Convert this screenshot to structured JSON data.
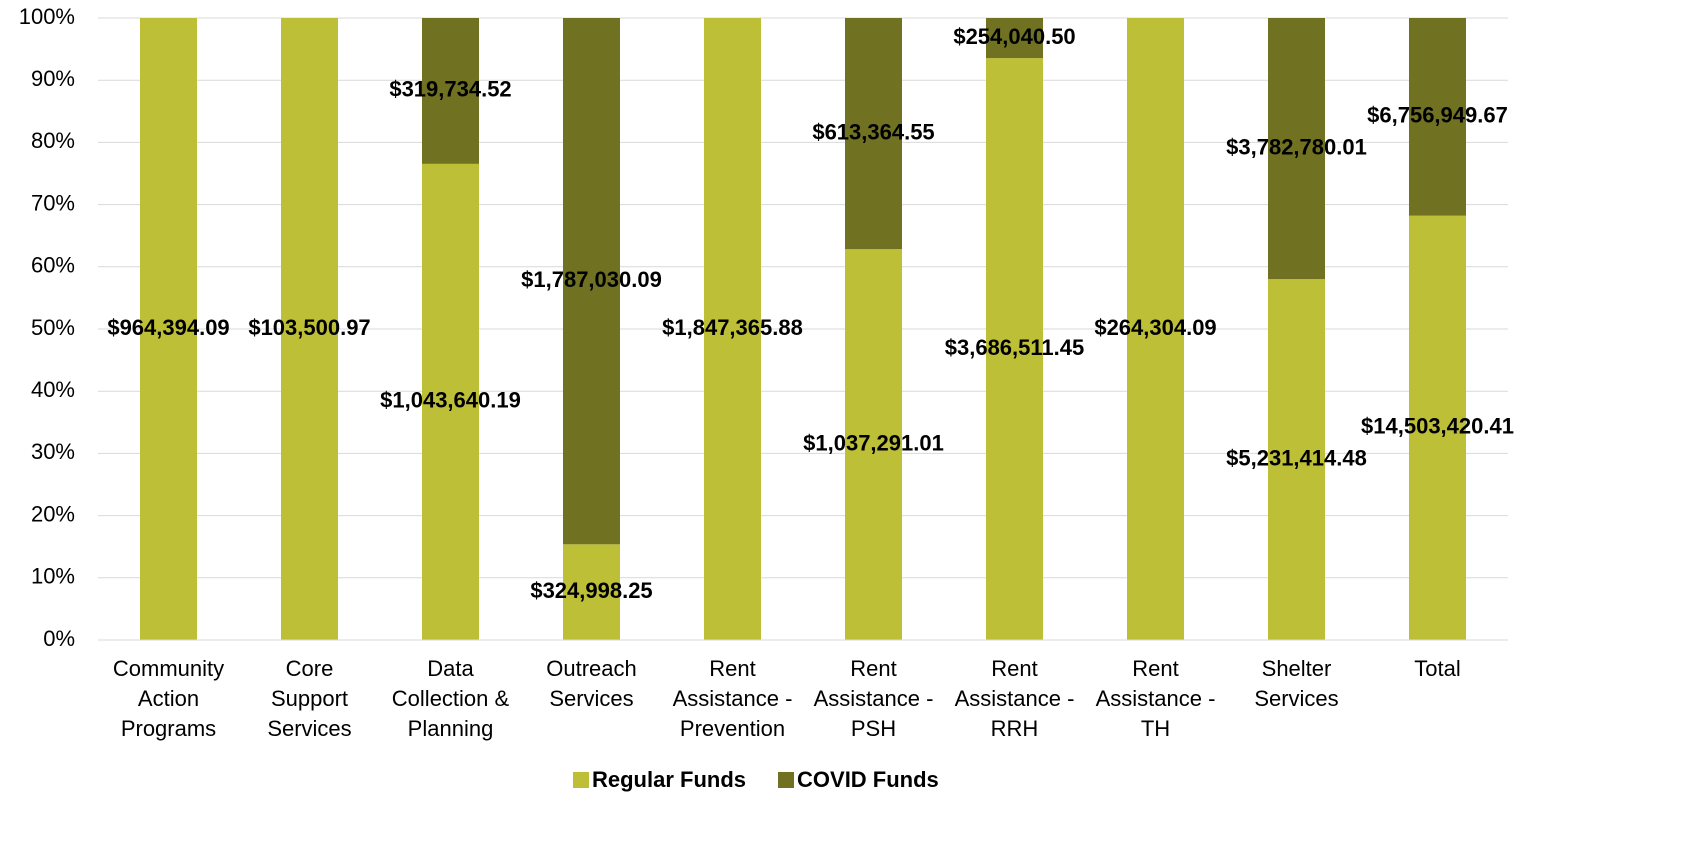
{
  "chart_data": {
    "type": "bar",
    "stacked": "percent",
    "categories": [
      "Community\nAction\nPrograms",
      "Core\nSupport\nServices",
      "Data\nCollection &\nPlanning",
      "Outreach\nServices",
      "Rent\nAssistance -\nPrevention",
      "Rent\nAssistance -\nPSH",
      "Rent\nAssistance -\nRRH",
      "Rent\nAssistance -\nTH",
      "Shelter\nServices",
      "Total"
    ],
    "series": [
      {
        "name": "Regular Funds",
        "color": "#bdbf37",
        "values": [
          964394.09,
          103500.97,
          1043640.19,
          324998.25,
          1847365.88,
          1037291.01,
          3686511.45,
          264304.09,
          5231414.48,
          14503420.41
        ],
        "value_labels": [
          "$964,394.09",
          "$103,500.97",
          "$1,043,640.19",
          "$324,998.25",
          "$1,847,365.88",
          "$1,037,291.01",
          "$3,686,511.45",
          "$264,304.09",
          "$5,231,414.48",
          "$14,503,420.41"
        ]
      },
      {
        "name": "COVID Funds",
        "color": "#707222",
        "values": [
          null,
          null,
          319734.52,
          1787030.09,
          null,
          613364.55,
          254040.5,
          null,
          3782780.01,
          6756949.67
        ],
        "value_labels": [
          null,
          null,
          "$319,734.52",
          "$1,787,030.09",
          null,
          "$613,364.55",
          "$254,040.50",
          null,
          "$3,782,780.01",
          "$6,756,949.67"
        ]
      }
    ],
    "ylim": [
      0,
      100
    ],
    "yticks": [
      {
        "value": 0,
        "label": "0%"
      },
      {
        "value": 10,
        "label": "10%"
      },
      {
        "value": 20,
        "label": "20%"
      },
      {
        "value": 30,
        "label": "30%"
      },
      {
        "value": 40,
        "label": "40%"
      },
      {
        "value": 50,
        "label": "50%"
      },
      {
        "value": 60,
        "label": "60%"
      },
      {
        "value": 70,
        "label": "70%"
      },
      {
        "value": 80,
        "label": "80%"
      },
      {
        "value": 90,
        "label": "90%"
      },
      {
        "value": 100,
        "label": "100%"
      }
    ],
    "grid": true,
    "legend": "bottom"
  }
}
